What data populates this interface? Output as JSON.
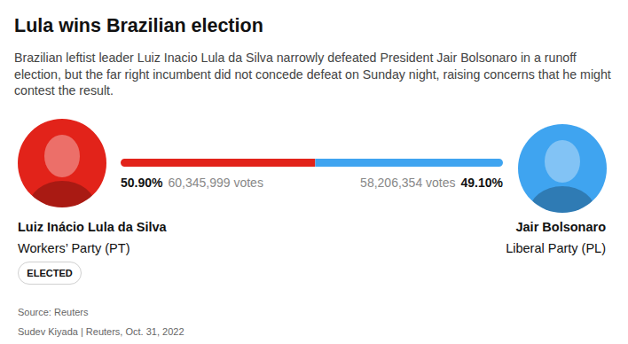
{
  "chart_data": {
    "type": "bar",
    "orientation": "horizontal",
    "stacked": true,
    "tick_labels": false,
    "title": "Lula wins Brazilian election",
    "subtitle": "Brazilian leftist leader Luiz Inacio Lula da Silva narrowly defeated President Jair Bolsonaro in a runoff election, but the far right incumbent did not concede defeat on Sunday night, raising concerns that he might contest the result.",
    "xlim": [
      0,
      100
    ],
    "series": [
      {
        "name": "Luiz Inácio Lula da Silva",
        "party": "Workers’ Party (PT)",
        "status": "ELECTED",
        "color": "#e2231a",
        "values": [
          50.9
        ],
        "value_labels": [
          "50.90%"
        ],
        "votes": [
          60345999
        ],
        "votes_labels": [
          "60,345,999 votes"
        ]
      },
      {
        "name": "Jair Bolsonaro",
        "party": "Liberal Party (PL)",
        "color": "#3fa4f0",
        "values": [
          49.1
        ],
        "value_labels": [
          "49.10%"
        ],
        "votes": [
          58206354
        ],
        "votes_labels": [
          "58,206,354 votes"
        ]
      }
    ],
    "source": "Source: Reuters",
    "credit": "Sudev Kiyada | Reuters, Oct. 31, 2022"
  }
}
